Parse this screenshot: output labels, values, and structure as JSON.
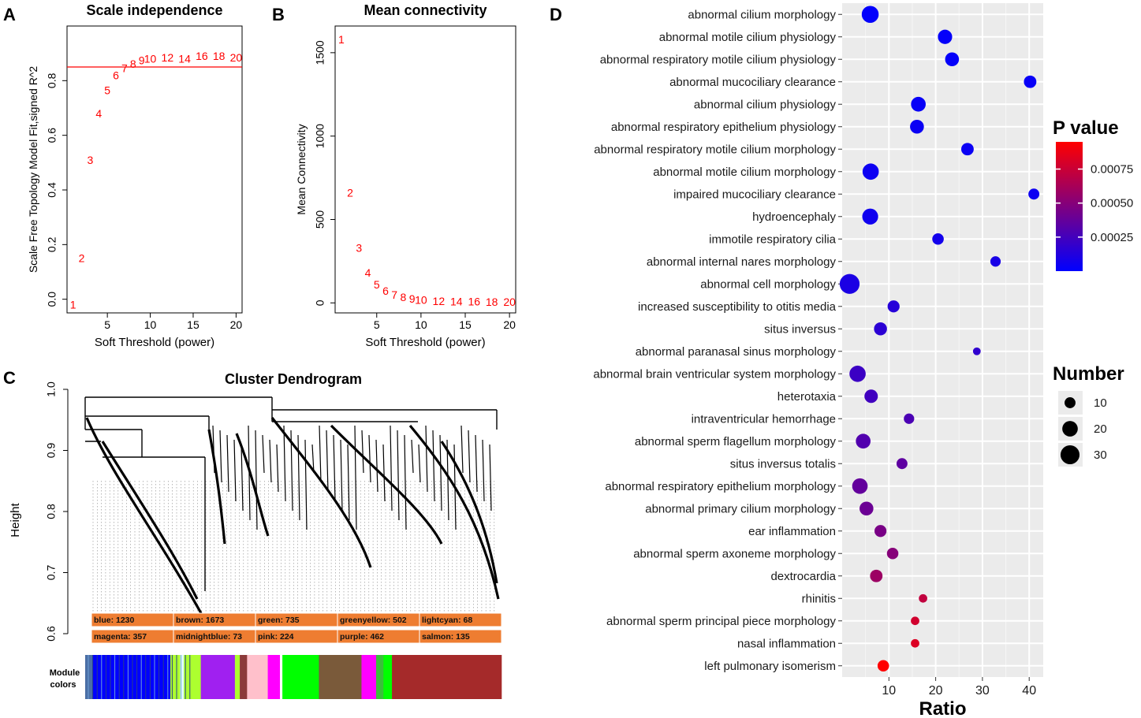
{
  "figure": {
    "panel_letters": [
      "A",
      "B",
      "C",
      "D"
    ],
    "module_colors_label": [
      "Module",
      "colors"
    ]
  },
  "chart_data": [
    {
      "type": "scatter",
      "panel": "A",
      "title": "Scale independence",
      "xlabel": "Soft Threshold (power)",
      "ylabel": "Scale Free Topology Model Fit,signed R^2",
      "xlim": [
        0.3,
        20.7
      ],
      "ylim": [
        -0.05,
        1.0
      ],
      "xticks": [
        5,
        10,
        15,
        20
      ],
      "yticks": [
        0.0,
        0.2,
        0.4,
        0.6,
        0.8
      ],
      "hline": 0.85,
      "marker_color": "#ff0000",
      "points": [
        {
          "x": 1,
          "y": -0.02,
          "label": "1"
        },
        {
          "x": 2,
          "y": 0.15,
          "label": "2"
        },
        {
          "x": 3,
          "y": 0.51,
          "label": "3"
        },
        {
          "x": 4,
          "y": 0.68,
          "label": "4"
        },
        {
          "x": 5,
          "y": 0.765,
          "label": "5"
        },
        {
          "x": 6,
          "y": 0.82,
          "label": "6"
        },
        {
          "x": 7,
          "y": 0.845,
          "label": "7"
        },
        {
          "x": 8,
          "y": 0.862,
          "label": "8"
        },
        {
          "x": 9,
          "y": 0.875,
          "label": "9"
        },
        {
          "x": 10,
          "y": 0.88,
          "label": "10"
        },
        {
          "x": 12,
          "y": 0.885,
          "label": "12"
        },
        {
          "x": 14,
          "y": 0.88,
          "label": "14"
        },
        {
          "x": 16,
          "y": 0.89,
          "label": "16"
        },
        {
          "x": 18,
          "y": 0.89,
          "label": "18"
        },
        {
          "x": 20,
          "y": 0.885,
          "label": "20"
        }
      ]
    },
    {
      "type": "scatter",
      "panel": "B",
      "title": "Mean connectivity",
      "xlabel": "Soft Threshold (power)",
      "ylabel": "Mean Connectivity",
      "xlim": [
        0.3,
        20.7
      ],
      "ylim": [
        -60,
        1660
      ],
      "xticks": [
        5,
        10,
        15,
        20
      ],
      "yticks": [
        0,
        500,
        1000,
        1500
      ],
      "marker_color": "#ff0000",
      "points": [
        {
          "x": 1,
          "y": 1580,
          "label": "1"
        },
        {
          "x": 2,
          "y": 660,
          "label": "2"
        },
        {
          "x": 3,
          "y": 330,
          "label": "3"
        },
        {
          "x": 4,
          "y": 180,
          "label": "4"
        },
        {
          "x": 5,
          "y": 110,
          "label": "5"
        },
        {
          "x": 6,
          "y": 72,
          "label": "6"
        },
        {
          "x": 7,
          "y": 48,
          "label": "7"
        },
        {
          "x": 8,
          "y": 34,
          "label": "8"
        },
        {
          "x": 9,
          "y": 24,
          "label": "9"
        },
        {
          "x": 10,
          "y": 18,
          "label": "10"
        },
        {
          "x": 12,
          "y": 12,
          "label": "12"
        },
        {
          "x": 14,
          "y": 9,
          "label": "14"
        },
        {
          "x": 16,
          "y": 8,
          "label": "16"
        },
        {
          "x": 18,
          "y": 7,
          "label": "18"
        },
        {
          "x": 20,
          "y": 6,
          "label": "20"
        }
      ]
    },
    {
      "type": "dendrogram",
      "panel": "C",
      "title": "Cluster Dendrogram",
      "ylabel": "Height",
      "ylim": [
        0.6,
        1.0
      ],
      "yticks": [
        0.6,
        0.7,
        0.8,
        0.9,
        1.0
      ],
      "modules": [
        {
          "name": "blue",
          "size": 1230,
          "label": "blue: 1230"
        },
        {
          "name": "brown",
          "size": 1673,
          "label": "brown: 1673"
        },
        {
          "name": "green",
          "size": 735,
          "label": "green: 735"
        },
        {
          "name": "greenyellow",
          "size": 502,
          "label": "greenyellow: 502"
        },
        {
          "name": "lightcyan",
          "size": 68,
          "label": "lightcyan: 68"
        },
        {
          "name": "magenta",
          "size": 357,
          "label": "magenta: 357"
        },
        {
          "name": "midnightblue",
          "size": 73,
          "label": "midnightblue: 73"
        },
        {
          "name": "pink",
          "size": 224,
          "label": "pink: 224"
        },
        {
          "name": "purple",
          "size": 462,
          "label": "purple: 462"
        },
        {
          "name": "salmon",
          "size": 135,
          "label": "salmon: 135"
        }
      ],
      "label_bar_color": "#ee7d31",
      "color_strip": [
        {
          "color": "#4b6ea5",
          "w": 1.2
        },
        {
          "color": "#0000ff",
          "w": 12.8
        },
        {
          "color": "#adff2f",
          "w": 1.6
        },
        {
          "color": "#e0ffff",
          "w": 0.6
        },
        {
          "color": "#adff2f",
          "w": 2.8
        },
        {
          "color": "#a020f0",
          "w": 5.6
        },
        {
          "color": "#adff2f",
          "w": 0.8
        },
        {
          "color": "#8b3a3a",
          "w": 1.2
        },
        {
          "color": "#ffc0cb",
          "w": 3.4
        },
        {
          "color": "#ff00ff",
          "w": 2.0
        },
        {
          "color": "#ffffff",
          "w": 0.4
        },
        {
          "color": "#00ff00",
          "w": 6.0
        },
        {
          "color": "#7a5a3a",
          "w": 7.0
        },
        {
          "color": "#ff00ff",
          "w": 2.4
        },
        {
          "color": "#3bbf3b",
          "w": 1.2
        },
        {
          "color": "#00ff00",
          "w": 1.4
        },
        {
          "color": "#a52a2a",
          "w": 18.0
        }
      ]
    },
    {
      "type": "scatter",
      "panel": "D",
      "subtype": "dot-plot",
      "xlabel": "Ratio",
      "xlim": [
        0,
        43
      ],
      "xticks": [
        10,
        20,
        30,
        40
      ],
      "legend_title_color": "P value",
      "legend_title_size": "Number",
      "color_scale": {
        "low": "#0000ff",
        "high": "#ff0000",
        "min": 0,
        "max": 0.00095,
        "ticks": [
          0.00025,
          0.0005,
          0.00075
        ],
        "tick_labels": [
          "0.00025",
          "0.00050",
          "0.00075"
        ]
      },
      "size_legend": [
        {
          "value": 10,
          "label": "10"
        },
        {
          "value": 20,
          "label": "20"
        },
        {
          "value": 30,
          "label": "30"
        }
      ],
      "categories": [
        "abnormal cilium morphology",
        "abnormal motile cilium physiology",
        "abnormal respiratory motile cilium physiology",
        "abnormal mucociliary clearance",
        "abnormal cilium physiology",
        "abnormal respiratory epithelium physiology",
        "abnormal respiratory motile cilium morphology",
        "abnormal motile cilium morphology",
        "impaired mucociliary clearance",
        "hydroencephaly",
        "immotile respiratory cilia",
        "abnormal internal nares morphology",
        "abnormal cell morphology",
        "increased susceptibility to otitis media",
        "situs inversus",
        "abnormal paranasal sinus morphology",
        "abnormal brain ventricular system morphology",
        "heterotaxia",
        "intraventricular hemorrhage",
        "abnormal sperm flagellum morphology",
        "situs inversus totalis",
        "abnormal respiratory epithelium morphology",
        "abnormal primary cilium morphology",
        "ear inflammation",
        "abnormal sperm axoneme morphology",
        "dextrocardia",
        "rhinitis",
        "abnormal sperm principal piece morphology",
        "nasal inflammation",
        "left pulmonary isomerism"
      ],
      "points": [
        {
          "category": "abnormal cilium morphology",
          "ratio": 6.0,
          "number": 24,
          "pvalue": 1e-05
        },
        {
          "category": "abnormal motile cilium physiology",
          "ratio": 22.0,
          "number": 17,
          "pvalue": 2e-05
        },
        {
          "category": "abnormal respiratory motile cilium physiology",
          "ratio": 23.5,
          "number": 16,
          "pvalue": 2e-05
        },
        {
          "category": "abnormal mucociliary clearance",
          "ratio": 40.2,
          "number": 13,
          "pvalue": 3e-05
        },
        {
          "category": "abnormal cilium physiology",
          "ratio": 16.3,
          "number": 18,
          "pvalue": 3e-05
        },
        {
          "category": "abnormal respiratory epithelium physiology",
          "ratio": 16.0,
          "number": 16,
          "pvalue": 4e-05
        },
        {
          "category": "abnormal respiratory motile cilium morphology",
          "ratio": 26.8,
          "number": 13,
          "pvalue": 4e-05
        },
        {
          "category": "abnormal motile cilium morphology",
          "ratio": 6.1,
          "number": 22,
          "pvalue": 5e-05
        },
        {
          "category": "impaired mucociliary clearance",
          "ratio": 41.0,
          "number": 10,
          "pvalue": 5e-05
        },
        {
          "category": "hydroencephaly",
          "ratio": 6.0,
          "number": 21,
          "pvalue": 6e-05
        },
        {
          "category": "immotile respiratory cilia",
          "ratio": 20.5,
          "number": 11,
          "pvalue": 7e-05
        },
        {
          "category": "abnormal internal nares morphology",
          "ratio": 32.8,
          "number": 9,
          "pvalue": 9e-05
        },
        {
          "category": "abnormal cell morphology",
          "ratio": 1.6,
          "number": 33,
          "pvalue": 0.0001
        },
        {
          "category": "increased susceptibility to otitis media",
          "ratio": 11.0,
          "number": 12,
          "pvalue": 0.00014
        },
        {
          "category": "situs inversus",
          "ratio": 8.2,
          "number": 14,
          "pvalue": 0.00016
        },
        {
          "category": "abnormal paranasal sinus morphology",
          "ratio": 28.8,
          "number": 5,
          "pvalue": 0.00018
        },
        {
          "category": "abnormal brain ventricular system morphology",
          "ratio": 3.3,
          "number": 22,
          "pvalue": 0.00022
        },
        {
          "category": "heterotaxia",
          "ratio": 6.2,
          "number": 15,
          "pvalue": 0.00024
        },
        {
          "category": "intraventricular hemorrhage",
          "ratio": 14.3,
          "number": 9,
          "pvalue": 0.00028
        },
        {
          "category": "abnormal sperm flagellum morphology",
          "ratio": 4.5,
          "number": 18,
          "pvalue": 0.0003
        },
        {
          "category": "situs inversus totalis",
          "ratio": 12.8,
          "number": 10,
          "pvalue": 0.00035
        },
        {
          "category": "abnormal respiratory epithelium morphology",
          "ratio": 3.8,
          "number": 20,
          "pvalue": 0.00037
        },
        {
          "category": "abnormal primary cilium morphology",
          "ratio": 5.2,
          "number": 16,
          "pvalue": 0.0004
        },
        {
          "category": "ear inflammation",
          "ratio": 8.2,
          "number": 12,
          "pvalue": 0.00045
        },
        {
          "category": "abnormal sperm axoneme morphology",
          "ratio": 10.8,
          "number": 11,
          "pvalue": 0.0005
        },
        {
          "category": "dextrocardia",
          "ratio": 7.3,
          "number": 13,
          "pvalue": 0.00058
        },
        {
          "category": "rhinitis",
          "ratio": 17.3,
          "number": 6,
          "pvalue": 0.00072
        },
        {
          "category": "abnormal sperm principal piece morphology",
          "ratio": 15.6,
          "number": 6,
          "pvalue": 0.00078
        },
        {
          "category": "nasal inflammation",
          "ratio": 15.6,
          "number": 6,
          "pvalue": 0.00082
        },
        {
          "category": "left pulmonary isomerism",
          "ratio": 8.8,
          "number": 11,
          "pvalue": 0.00095
        }
      ]
    }
  ]
}
